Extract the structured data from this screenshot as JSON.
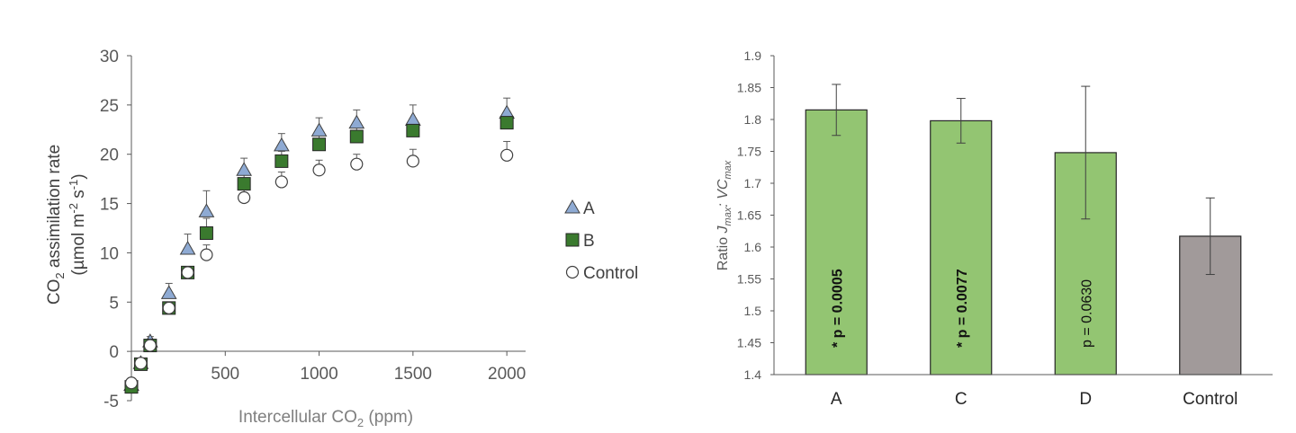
{
  "chart_data": [
    {
      "type": "scatter",
      "title": "",
      "xlabel": {
        "main": "Intercellular CO",
        "sub": "2",
        "tail": " (ppm)"
      },
      "ylabel": {
        "line1_main": "CO",
        "line1_sub": "2",
        "line1_tail": " assimilation rate",
        "line2_a": "(µmol m",
        "line2_sup1": "-2",
        "line2_b": " s",
        "line2_sup2": "-1",
        "line2_c": ")"
      },
      "xlim": [
        0,
        2100
      ],
      "ylim": [
        -5,
        30
      ],
      "x_ticks": [
        500,
        1000,
        1500,
        2000
      ],
      "x_tick_labels": [
        "500",
        "1000",
        "1500",
        "2000"
      ],
      "y_ticks": [
        -5,
        0,
        5,
        10,
        15,
        20,
        25,
        30
      ],
      "y_tick_labels": [
        "-5",
        "0",
        "5",
        "10",
        "15",
        "20",
        "25",
        "30"
      ],
      "legend_position": "right",
      "series": [
        {
          "name": "A",
          "marker": "triangle",
          "color": "#8eaad3",
          "points": [
            {
              "x": 0,
              "y": -3.4,
              "err": 0.5
            },
            {
              "x": 50,
              "y": -1.2,
              "err": 0.5
            },
            {
              "x": 100,
              "y": 1.0,
              "err": 0.5
            },
            {
              "x": 200,
              "y": 5.9,
              "err": 1.0
            },
            {
              "x": 300,
              "y": 10.4,
              "err": 1.5
            },
            {
              "x": 400,
              "y": 14.2,
              "err": 2.1
            },
            {
              "x": 600,
              "y": 18.4,
              "err": 1.2
            },
            {
              "x": 800,
              "y": 20.9,
              "err": 1.2
            },
            {
              "x": 1000,
              "y": 22.4,
              "err": 1.3
            },
            {
              "x": 1200,
              "y": 23.2,
              "err": 1.3
            },
            {
              "x": 1500,
              "y": 23.5,
              "err": 1.5
            },
            {
              "x": 2000,
              "y": 24.2,
              "err": 1.5
            }
          ]
        },
        {
          "name": "B",
          "marker": "square",
          "color": "#3a7a2e",
          "points": [
            {
              "x": 0,
              "y": -3.6,
              "err": 0.5
            },
            {
              "x": 50,
              "y": -1.3,
              "err": 0.5
            },
            {
              "x": 100,
              "y": 0.6,
              "err": 0.5
            },
            {
              "x": 200,
              "y": 4.4,
              "err": 0.6
            },
            {
              "x": 300,
              "y": 8.0,
              "err": 0.6
            },
            {
              "x": 400,
              "y": 12.0,
              "err": 1.5
            },
            {
              "x": 600,
              "y": 17.0,
              "err": 1.0
            },
            {
              "x": 800,
              "y": 19.3,
              "err": 1.0
            },
            {
              "x": 1000,
              "y": 21.0,
              "err": 1.0
            },
            {
              "x": 1200,
              "y": 21.8,
              "err": 1.0
            },
            {
              "x": 1500,
              "y": 22.4,
              "err": 1.0
            },
            {
              "x": 2000,
              "y": 23.2,
              "err": 1.0
            }
          ]
        },
        {
          "name": "Control",
          "marker": "circle",
          "color": "#ffffff",
          "points": [
            {
              "x": 0,
              "y": -3.2,
              "err": 0.5
            },
            {
              "x": 50,
              "y": -1.2,
              "err": 0.5
            },
            {
              "x": 100,
              "y": 0.6,
              "err": 0.5
            },
            {
              "x": 200,
              "y": 4.4,
              "err": 0.6
            },
            {
              "x": 300,
              "y": 8.0,
              "err": 0.6
            },
            {
              "x": 400,
              "y": 9.8,
              "err": 1.0
            },
            {
              "x": 600,
              "y": 15.6,
              "err": 1.0
            },
            {
              "x": 800,
              "y": 17.2,
              "err": 1.0
            },
            {
              "x": 1000,
              "y": 18.4,
              "err": 1.0
            },
            {
              "x": 1200,
              "y": 19.0,
              "err": 1.0
            },
            {
              "x": 1500,
              "y": 19.3,
              "err": 1.2
            },
            {
              "x": 2000,
              "y": 19.9,
              "err": 1.4
            }
          ]
        }
      ]
    },
    {
      "type": "bar",
      "title": "",
      "xlabel": "",
      "ylabel": {
        "a": "Ratio ",
        "b": "J",
        "b_sub": "max",
        "c": ": VC",
        "c_sub": "max"
      },
      "ylim": [
        1.4,
        1.9
      ],
      "y_ticks": [
        1.4,
        1.45,
        1.5,
        1.55,
        1.6,
        1.65,
        1.7,
        1.75,
        1.8,
        1.85,
        1.9
      ],
      "y_tick_labels": [
        "1.4",
        "1.45",
        "1.5",
        "1.55",
        "1.6",
        "1.65",
        "1.7",
        "1.75",
        "1.8",
        "1.85",
        "1.9"
      ],
      "categories": [
        "A",
        "C",
        "D",
        "Control"
      ],
      "values": [
        1.815,
        1.798,
        1.748,
        1.617
      ],
      "errors": [
        0.04,
        0.035,
        0.104,
        0.06
      ],
      "annotations": [
        "* p = 0.0005",
        "* p = 0.0077",
        "p = 0.0630",
        ""
      ],
      "annotation_bold": [
        true,
        true,
        false,
        false
      ],
      "bar_colors": [
        "#93c572",
        "#93c572",
        "#93c572",
        "#a19a9a"
      ]
    }
  ]
}
